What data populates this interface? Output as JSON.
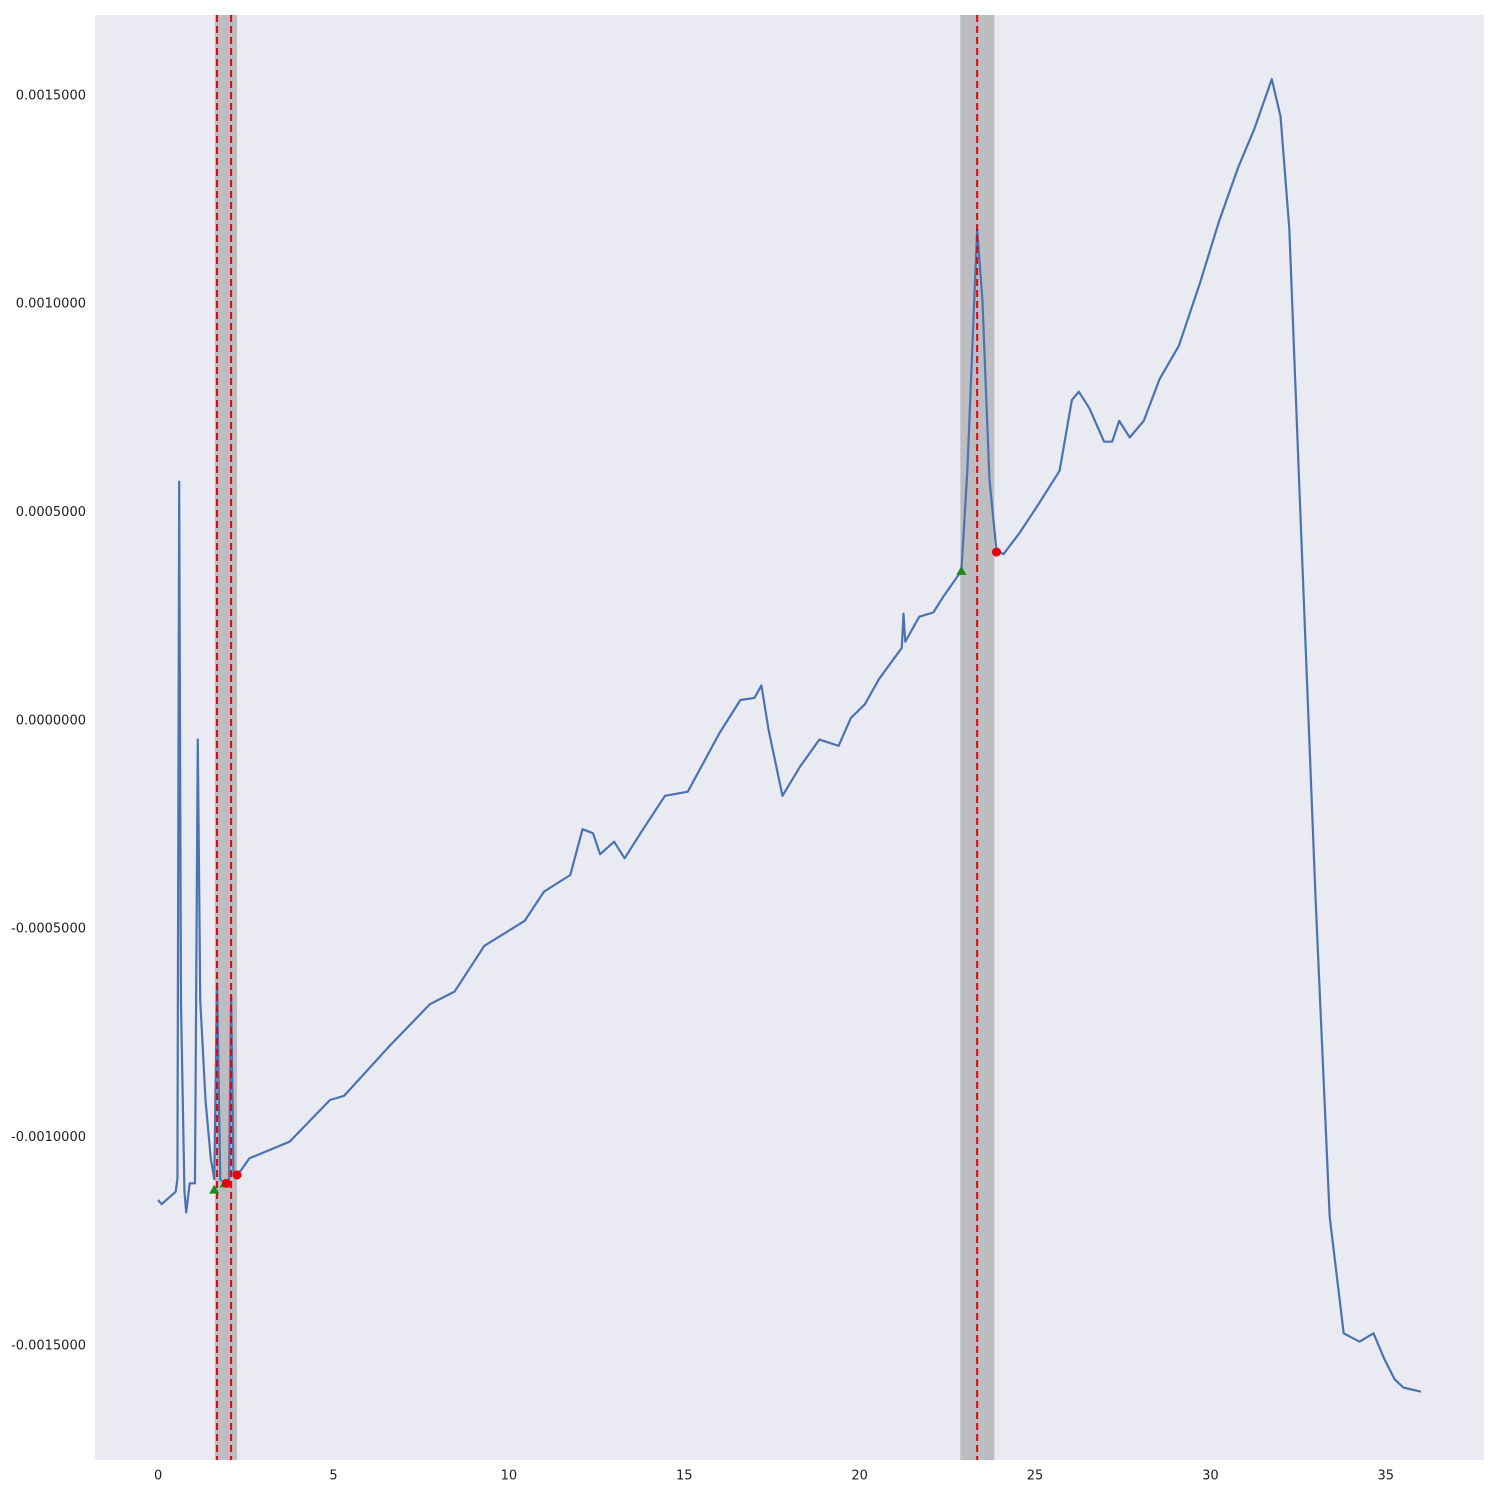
{
  "chart_data": {
    "type": "line",
    "x": [
      0,
      0.1,
      0.5,
      0.55,
      0.6,
      0.65,
      0.75,
      0.8,
      0.9,
      1.05,
      1.13,
      1.2,
      1.35,
      1.5,
      1.6,
      1.68,
      1.77,
      1.9,
      2.02,
      2.08,
      2.15,
      2.35,
      2.6,
      3.75,
      4.9,
      5.3,
      6.6,
      7.75,
      8.45,
      9.3,
      10.45,
      11.0,
      11.75,
      12.1,
      12.4,
      12.6,
      13.0,
      13.3,
      13.75,
      14.45,
      15.1,
      16.0,
      16.6,
      17.0,
      17.2,
      17.4,
      17.8,
      18.3,
      18.85,
      19.4,
      19.75,
      20.15,
      20.55,
      21.2,
      21.25,
      21.3,
      21.7,
      22.1,
      22.4,
      22.9,
      23.07,
      23.35,
      23.5,
      23.7,
      23.9,
      24.1,
      24.55,
      25.1,
      25.7,
      26.05,
      26.25,
      26.55,
      26.97,
      27.2,
      27.4,
      27.7,
      28.1,
      28.55,
      29.1,
      29.7,
      30.25,
      30.8,
      31.25,
      31.75,
      32.0,
      32.25,
      32.55,
      33.0,
      33.4,
      33.8,
      34.25,
      34.65,
      34.95,
      35.25,
      35.5,
      36.0
    ],
    "series": [
      {
        "color": "#4c72b0",
        "values": [
          -0.00115,
          -0.00116,
          -0.00113,
          -0.0011,
          0.000574,
          -0.00067,
          -0.00113,
          -0.00118,
          -0.00111,
          -0.00111,
          -4.5e-05,
          -0.00067,
          -0.00091,
          -0.00105,
          -0.0011,
          -0.00063,
          -0.0011,
          -0.00111,
          -0.0011,
          -0.00066,
          -0.00109,
          -0.00108,
          -0.00105,
          -0.00101,
          -0.00091,
          -0.0009,
          -0.00078,
          -0.00068,
          -0.00065,
          -0.00054,
          -0.00048,
          -0.00041,
          -0.00037,
          -0.00026,
          -0.00027,
          -0.00032,
          -0.00029,
          -0.00033,
          -0.00027,
          -0.00018,
          -0.00017,
          -3e-05,
          5e-05,
          5.5e-05,
          8.5e-05,
          -2e-05,
          -0.00018,
          -0.00011,
          -4.5e-05,
          -6e-05,
          7e-06,
          4e-05,
          0.0001,
          0.000175,
          0.000257,
          0.00019,
          0.00025,
          0.00026,
          0.0003,
          0.00036,
          0.0006,
          0.00118,
          0.00101,
          0.00058,
          0.00041,
          0.0004,
          0.00045,
          0.00052,
          0.0006,
          0.00077,
          0.00079,
          0.00075,
          0.00067,
          0.00067,
          0.00072,
          0.00068,
          0.00072,
          0.00082,
          0.0009,
          0.00105,
          0.0012,
          0.00133,
          0.00142,
          0.00154,
          0.00145,
          0.00118,
          0.00053,
          -0.00043,
          -0.00119,
          -0.00147,
          -0.00149,
          -0.00147,
          -0.00153,
          -0.00158,
          -0.0016,
          -0.00161
        ]
      }
    ],
    "spans": [
      [
        1.62,
        2.25
      ],
      [
        22.87,
        23.84
      ]
    ],
    "span_color": "#b4b4b8",
    "vlines": [
      1.68,
      2.08,
      23.35
    ],
    "vline_color": "#e8000b",
    "start_markers": {
      "color": "#1a8a1a",
      "x": [
        1.6,
        1.9,
        22.9
      ],
      "y": [
        -0.001125,
        -0.00111,
        0.00036
      ]
    },
    "end_markers": {
      "color": "#e8000b",
      "x": [
        1.95,
        2.25,
        23.9
      ],
      "y": [
        -0.00111,
        -0.00109,
        0.000405
      ]
    },
    "xlim": [
      -1.8,
      37.8
    ],
    "ylim": [
      -0.001774,
      0.001694
    ],
    "xticks": [
      0,
      5,
      10,
      15,
      20,
      25,
      30,
      35
    ],
    "yticks": [
      {
        "value": -0.0015,
        "label": "-0.0015000"
      },
      {
        "value": -0.001,
        "label": "-0.0010000"
      },
      {
        "value": -0.0005,
        "label": "-0.0005000"
      },
      {
        "value": 0,
        "label": "0.0000000"
      },
      {
        "value": 0.0005,
        "label": "0.0005000"
      },
      {
        "value": 0.001,
        "label": "0.0010000"
      },
      {
        "value": 0.0015,
        "label": "0.0015000"
      }
    ],
    "grid": false,
    "background": "#eaeaf2"
  }
}
